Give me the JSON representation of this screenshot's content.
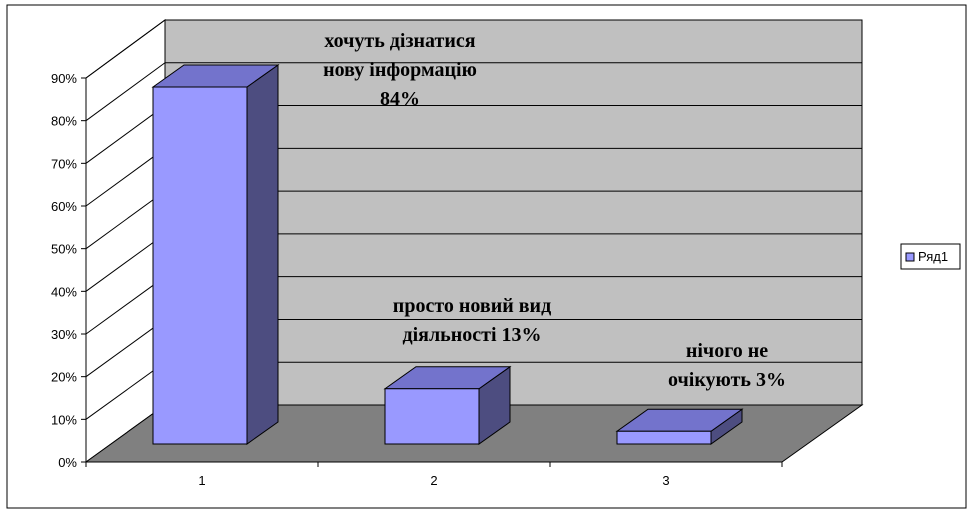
{
  "chart_data": {
    "type": "bar",
    "title": "",
    "xlabel": "",
    "ylabel": "",
    "categories": [
      "1",
      "2",
      "3"
    ],
    "series": [
      {
        "name": "Ряд1",
        "values": [
          0.84,
          0.13,
          0.03
        ]
      }
    ],
    "ylim": [
      0,
      0.9
    ],
    "yticks": [
      "0%",
      "10%",
      "20%",
      "30%",
      "40%",
      "50%",
      "60%",
      "70%",
      "80%",
      "90%"
    ],
    "grid": true,
    "legend": {
      "placement": "right",
      "entries": [
        "Ряд1"
      ]
    },
    "annotations": [
      {
        "lines": [
          "хочуть дізнатися",
          "нову інформацію",
          "84%"
        ]
      },
      {
        "lines": [
          "просто новий вид",
          "діяльності 13%"
        ]
      },
      {
        "lines": [
          "нічого не",
          "очікують 3%"
        ]
      }
    ],
    "colors": {
      "bar_front": "#9999ff",
      "bar_top": "#7373cc",
      "bar_side": "#4d4d80",
      "back_wall": "#c0c0c0",
      "floor": "#808080",
      "gridline": "#000000"
    }
  }
}
